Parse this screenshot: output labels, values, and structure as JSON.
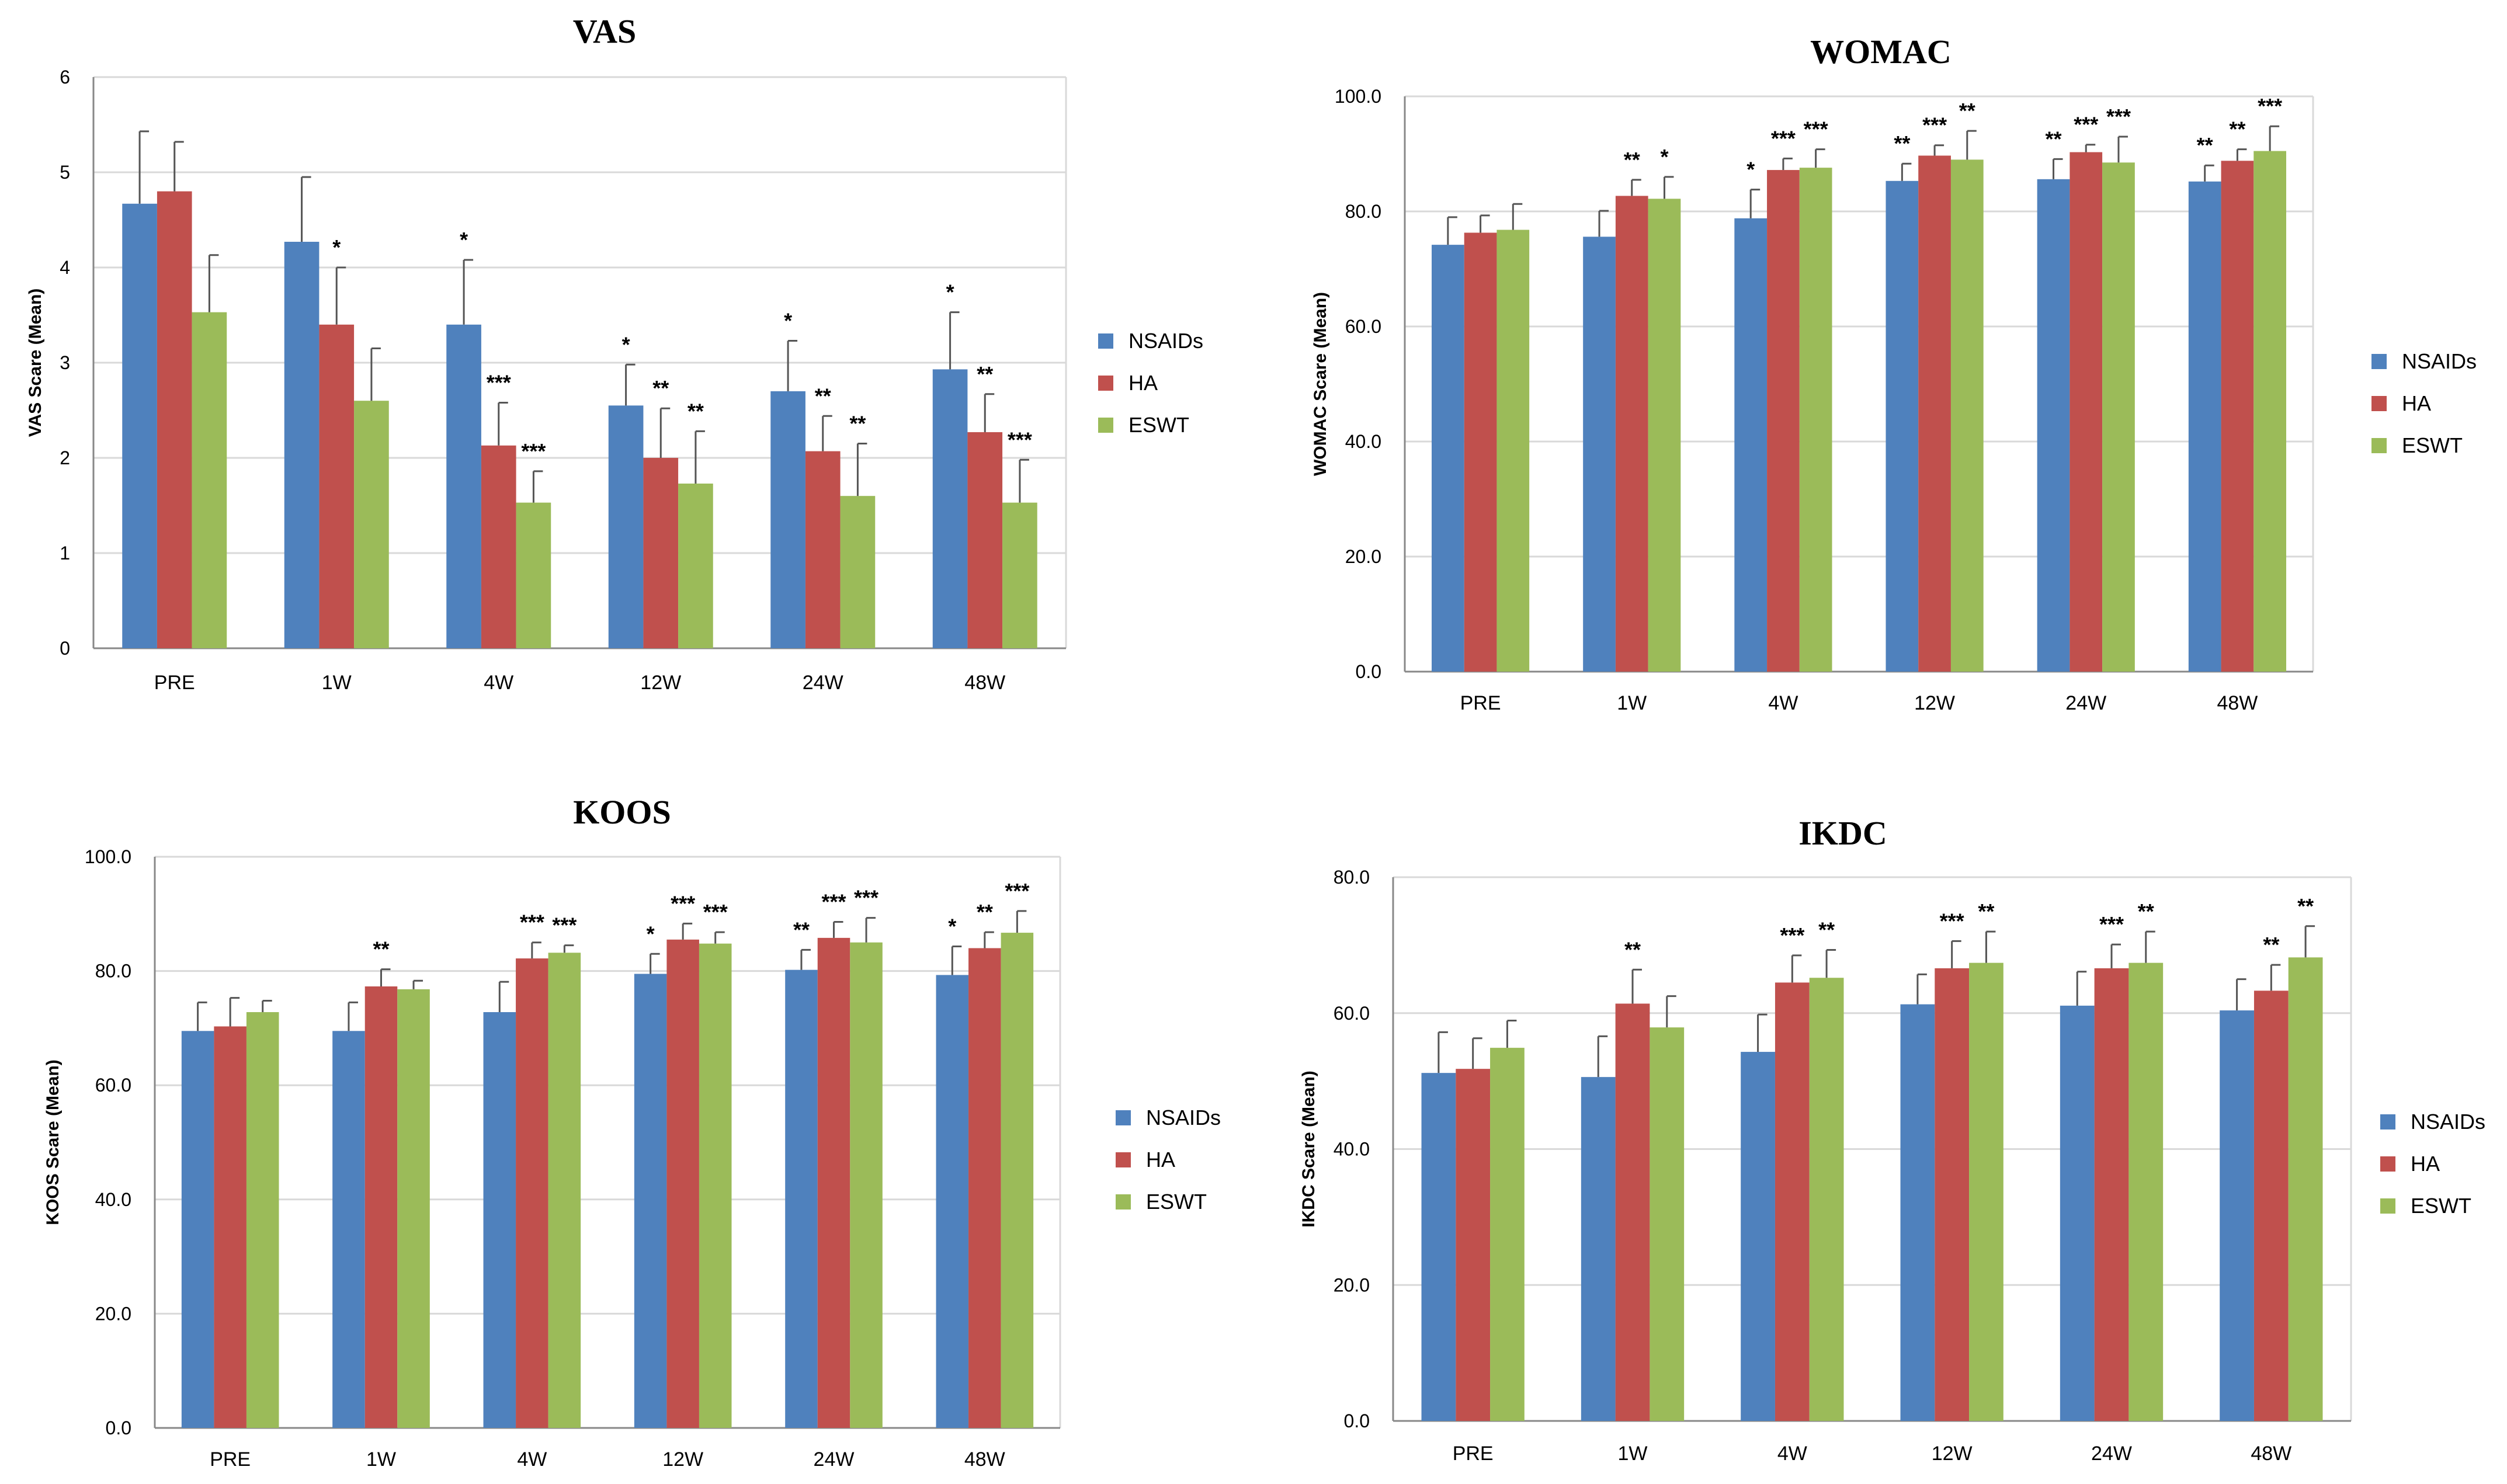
{
  "colors": {
    "NSAIDs": "#4f81bd",
    "HA": "#c0504d",
    "ESWT": "#9bbb59",
    "grid": "#d9d9d9",
    "axis": "#888888"
  },
  "chart_data": [
    {
      "type": "bar",
      "title": "VAS",
      "ylabel": "VAS Scare (Mean)",
      "xlabel": "",
      "categories": [
        "PRE",
        "1W",
        "4W",
        "12W",
        "24W",
        "48W"
      ],
      "ylim": [
        0,
        6
      ],
      "yticks": [
        "0",
        "1",
        "2",
        "3",
        "4",
        "5",
        "6"
      ],
      "legend": "right",
      "series": [
        {
          "name": "NSAIDs",
          "values": [
            4.67,
            4.27,
            3.4,
            2.55,
            2.7,
            2.93
          ],
          "errors": [
            0.76,
            0.68,
            0.68,
            0.43,
            0.53,
            0.6
          ],
          "sig": [
            "",
            "",
            "*",
            "*",
            "*",
            "*"
          ]
        },
        {
          "name": "HA",
          "values": [
            4.8,
            3.4,
            2.13,
            2.0,
            2.07,
            2.27
          ],
          "errors": [
            0.52,
            0.6,
            0.45,
            0.52,
            0.37,
            0.4
          ],
          "sig": [
            "",
            "*",
            "***",
            "**",
            "**",
            "**"
          ]
        },
        {
          "name": "ESWT",
          "values": [
            3.53,
            2.6,
            1.53,
            1.73,
            1.6,
            1.53
          ],
          "errors": [
            0.6,
            0.55,
            0.33,
            0.55,
            0.55,
            0.45
          ],
          "sig": [
            "",
            "",
            "***",
            "**",
            "**",
            "***"
          ]
        }
      ]
    },
    {
      "type": "bar",
      "title": "WOMAC",
      "ylabel": "WOMAC Scare (Mean)",
      "xlabel": "",
      "categories": [
        "PRE",
        "1W",
        "4W",
        "12W",
        "24W",
        "48W"
      ],
      "ylim": [
        0,
        100
      ],
      "yticks": [
        "0.0",
        "20.0",
        "40.0",
        "60.0",
        "80.0",
        "100.0"
      ],
      "legend": "right",
      "series": [
        {
          "name": "NSAIDs",
          "values": [
            74.2,
            75.6,
            78.8,
            85.3,
            85.6,
            85.2
          ],
          "errors": [
            4.8,
            4.5,
            5.0,
            3.0,
            3.5,
            2.8
          ],
          "sig": [
            "",
            "",
            "*",
            "**",
            "**",
            "**"
          ]
        },
        {
          "name": "HA",
          "values": [
            76.3,
            82.7,
            87.2,
            89.7,
            90.3,
            88.8
          ],
          "errors": [
            3.0,
            2.8,
            2.0,
            1.8,
            1.3,
            2.0
          ],
          "sig": [
            "",
            "**",
            "***",
            "***",
            "***",
            "**"
          ]
        },
        {
          "name": "ESWT",
          "values": [
            76.8,
            82.2,
            87.6,
            89.0,
            88.5,
            90.5
          ],
          "errors": [
            4.5,
            3.8,
            3.2,
            5.0,
            4.5,
            4.3
          ],
          "sig": [
            "",
            "*",
            "***",
            "**",
            "***",
            "***"
          ]
        }
      ]
    },
    {
      "type": "bar",
      "title": "KOOS",
      "ylabel": "KOOS Scare (Mean)",
      "xlabel": "",
      "categories": [
        "PRE",
        "1W",
        "4W",
        "12W",
        "24W",
        "48W"
      ],
      "ylim": [
        0,
        100
      ],
      "yticks": [
        "0.0",
        "20.0",
        "40.0",
        "60.0",
        "80.0",
        "100.0"
      ],
      "legend": "right",
      "series": [
        {
          "name": "NSAIDs",
          "values": [
            69.5,
            69.5,
            72.8,
            79.5,
            80.2,
            79.3
          ],
          "errors": [
            5.0,
            5.0,
            5.3,
            3.5,
            3.5,
            5.0
          ],
          "sig": [
            "",
            "",
            "",
            "*",
            "**",
            "*"
          ]
        },
        {
          "name": "HA",
          "values": [
            70.3,
            77.3,
            82.2,
            85.5,
            85.8,
            84.0
          ],
          "errors": [
            5.0,
            3.0,
            2.8,
            2.8,
            2.8,
            2.8
          ],
          "sig": [
            "",
            "**",
            "***",
            "***",
            "***",
            "**"
          ]
        },
        {
          "name": "ESWT",
          "values": [
            72.8,
            76.8,
            83.2,
            84.8,
            85.0,
            86.7
          ],
          "errors": [
            2.0,
            1.5,
            1.3,
            2.0,
            4.3,
            3.8
          ],
          "sig": [
            "",
            "",
            "***",
            "***",
            "***",
            "***"
          ]
        }
      ]
    },
    {
      "type": "bar",
      "title": "IKDC",
      "ylabel": "IKDC Scare (Mean)",
      "xlabel": "",
      "categories": [
        "PRE",
        "1W",
        "4W",
        "12W",
        "24W",
        "48W"
      ],
      "ylim": [
        0,
        80
      ],
      "yticks": [
        "0.0",
        "20.0",
        "40.0",
        "60.0",
        "80.0"
      ],
      "legend": "right",
      "series": [
        {
          "name": "NSAIDs",
          "values": [
            51.2,
            50.6,
            54.3,
            61.3,
            61.1,
            60.4
          ],
          "errors": [
            6.0,
            6.0,
            5.5,
            4.4,
            5.0,
            4.6
          ],
          "sig": [
            "",
            "",
            "",
            "",
            "",
            ""
          ]
        },
        {
          "name": "HA",
          "values": [
            51.8,
            61.4,
            64.5,
            66.6,
            66.6,
            63.3
          ],
          "errors": [
            4.5,
            5.0,
            4.0,
            4.0,
            3.5,
            3.8
          ],
          "sig": [
            "",
            "**",
            "***",
            "***",
            "***",
            "**"
          ]
        },
        {
          "name": "ESWT",
          "values": [
            54.9,
            57.9,
            65.2,
            67.4,
            67.4,
            68.2
          ],
          "errors": [
            4.0,
            4.6,
            4.1,
            4.6,
            4.6,
            4.6
          ],
          "sig": [
            "",
            "",
            "**",
            "**",
            "**",
            "**"
          ]
        }
      ]
    }
  ]
}
